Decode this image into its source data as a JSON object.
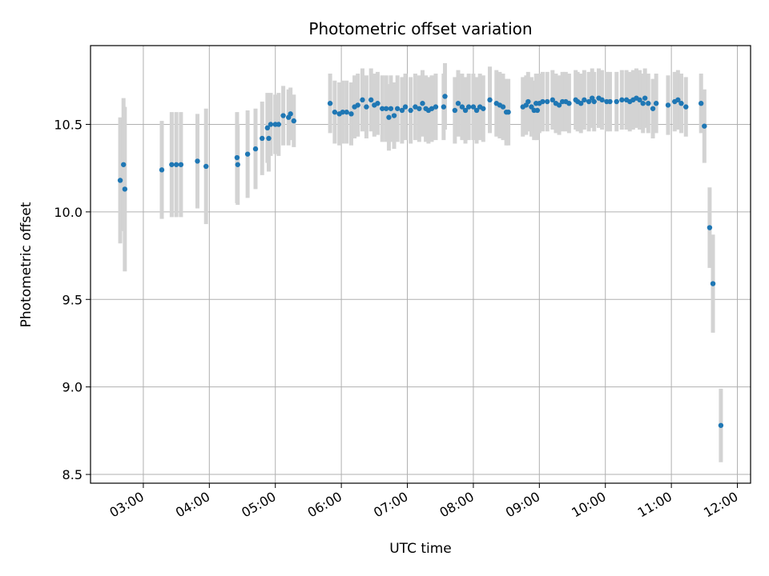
{
  "chart_data": {
    "type": "scatter",
    "title": "Photometric offset variation",
    "xlabel": "UTC time",
    "ylabel": "Photometric offset",
    "x_unit": "hours UTC",
    "xlim": [
      2.2,
      12.2
    ],
    "ylim": [
      8.45,
      10.95
    ],
    "x_ticks": [
      3,
      4,
      5,
      6,
      7,
      8,
      9,
      10,
      11,
      12
    ],
    "x_tick_labels": [
      "03:00",
      "04:00",
      "05:00",
      "06:00",
      "07:00",
      "08:00",
      "09:00",
      "10:00",
      "11:00",
      "12:00"
    ],
    "y_ticks": [
      8.5,
      9.0,
      9.5,
      10.0,
      10.5
    ],
    "y_tick_labels": [
      "8.5",
      "9.0",
      "9.5",
      "10.0",
      "10.5"
    ],
    "grid": true,
    "colors": {
      "points": "#1f77b4",
      "errorbars": "#d3d3d3",
      "grid": "#b0b0b0"
    },
    "series": [
      {
        "x": [
          2.65,
          2.7,
          2.72,
          3.28,
          3.43,
          3.5,
          3.57,
          3.82,
          3.95,
          4.42,
          4.43,
          4.58,
          4.7,
          4.8,
          4.88,
          4.9,
          4.93,
          5.0,
          5.05,
          5.12,
          5.2,
          5.23,
          5.28,
          5.83,
          5.9,
          5.97,
          6.02,
          6.08,
          6.15,
          6.2,
          6.25,
          6.32,
          6.38,
          6.45,
          6.5,
          6.55,
          6.62,
          6.68,
          6.72,
          6.75,
          6.8,
          6.85,
          6.92,
          6.97,
          7.05,
          7.12,
          7.18,
          7.23,
          7.28,
          7.32,
          7.37,
          7.43,
          7.55,
          7.57,
          7.72,
          7.77,
          7.83,
          7.88,
          7.93,
          8.0,
          8.05,
          8.1,
          8.15,
          8.25,
          8.35,
          8.4,
          8.45,
          8.5,
          8.53,
          8.75,
          8.8,
          8.83,
          8.88,
          8.92,
          8.95,
          8.97,
          9.0,
          9.05,
          9.12,
          9.2,
          9.25,
          9.3,
          9.35,
          9.4,
          9.45,
          9.55,
          9.58,
          9.63,
          9.68,
          9.75,
          9.8,
          9.83,
          9.9,
          9.95,
          10.02,
          10.07,
          10.17,
          10.25,
          10.32,
          10.37,
          10.42,
          10.47,
          10.52,
          10.57,
          10.6,
          10.65,
          10.72,
          10.77,
          10.95,
          11.05,
          11.1,
          11.15,
          11.22,
          11.45,
          11.5,
          11.58,
          11.63,
          11.75
        ],
        "y": [
          10.18,
          10.27,
          10.13,
          10.24,
          10.27,
          10.27,
          10.27,
          10.29,
          10.26,
          10.31,
          10.27,
          10.33,
          10.36,
          10.42,
          10.48,
          10.42,
          10.5,
          10.5,
          10.5,
          10.55,
          10.54,
          10.56,
          10.52,
          10.62,
          10.57,
          10.56,
          10.57,
          10.57,
          10.56,
          10.6,
          10.61,
          10.64,
          10.6,
          10.64,
          10.61,
          10.62,
          10.59,
          10.59,
          10.54,
          10.59,
          10.55,
          10.59,
          10.58,
          10.6,
          10.58,
          10.6,
          10.59,
          10.62,
          10.59,
          10.58,
          10.59,
          10.6,
          10.6,
          10.66,
          10.58,
          10.62,
          10.6,
          10.58,
          10.6,
          10.6,
          10.58,
          10.6,
          10.59,
          10.64,
          10.62,
          10.61,
          10.6,
          10.57,
          10.57,
          10.6,
          10.61,
          10.63,
          10.6,
          10.58,
          10.62,
          10.58,
          10.62,
          10.63,
          10.63,
          10.64,
          10.62,
          10.61,
          10.63,
          10.63,
          10.62,
          10.64,
          10.63,
          10.62,
          10.64,
          10.63,
          10.65,
          10.63,
          10.65,
          10.64,
          10.63,
          10.63,
          10.63,
          10.64,
          10.64,
          10.63,
          10.64,
          10.65,
          10.64,
          10.62,
          10.65,
          10.62,
          10.59,
          10.62,
          10.61,
          10.63,
          10.64,
          10.62,
          10.6,
          10.62,
          10.49,
          9.91,
          9.59,
          8.78
        ],
        "yerr": [
          0.36,
          0.38,
          0.47,
          0.28,
          0.3,
          0.3,
          0.3,
          0.27,
          0.33,
          0.26,
          0.23,
          0.25,
          0.23,
          0.21,
          0.2,
          0.19,
          0.18,
          0.17,
          0.18,
          0.17,
          0.16,
          0.15,
          0.15,
          0.17,
          0.18,
          0.18,
          0.18,
          0.18,
          0.18,
          0.18,
          0.18,
          0.18,
          0.18,
          0.18,
          0.18,
          0.18,
          0.19,
          0.19,
          0.19,
          0.19,
          0.19,
          0.19,
          0.19,
          0.19,
          0.19,
          0.19,
          0.19,
          0.19,
          0.19,
          0.19,
          0.19,
          0.19,
          0.19,
          0.19,
          0.19,
          0.19,
          0.19,
          0.19,
          0.19,
          0.19,
          0.19,
          0.19,
          0.19,
          0.19,
          0.19,
          0.19,
          0.19,
          0.19,
          0.19,
          0.17,
          0.17,
          0.17,
          0.17,
          0.17,
          0.17,
          0.17,
          0.17,
          0.17,
          0.17,
          0.17,
          0.17,
          0.17,
          0.17,
          0.17,
          0.17,
          0.17,
          0.17,
          0.17,
          0.17,
          0.17,
          0.17,
          0.17,
          0.17,
          0.17,
          0.17,
          0.17,
          0.17,
          0.17,
          0.17,
          0.17,
          0.17,
          0.17,
          0.17,
          0.17,
          0.17,
          0.17,
          0.17,
          0.17,
          0.17,
          0.17,
          0.17,
          0.17,
          0.17,
          0.17,
          0.21,
          0.23,
          0.28,
          0.21
        ]
      }
    ]
  }
}
